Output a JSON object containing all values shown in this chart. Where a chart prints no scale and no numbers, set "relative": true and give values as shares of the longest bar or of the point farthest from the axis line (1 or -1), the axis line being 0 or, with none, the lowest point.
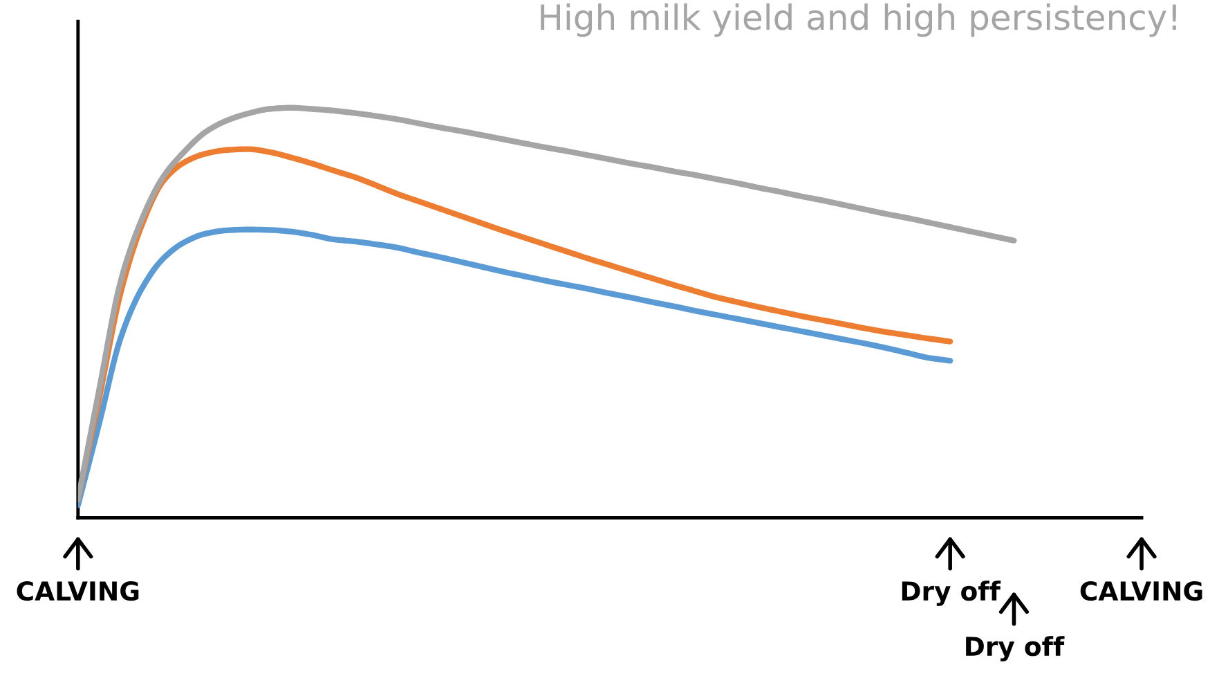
{
  "chart_data": {
    "type": "line",
    "title": "High milk yield and high persistency!",
    "relative": true,
    "legend": false,
    "marker": "none",
    "annotations": [
      "Dry off"
    ],
    "line_style": "solid",
    "categories": [
      "CALVING",
      null,
      null,
      null,
      null,
      null,
      null,
      null,
      null,
      null,
      null,
      null,
      null,
      null,
      null,
      null,
      null,
      null,
      null,
      null,
      null,
      null,
      null,
      null,
      null,
      null,
      null,
      null,
      null,
      null,
      null,
      null,
      null,
      null,
      null,
      null,
      null,
      null,
      null,
      null,
      null,
      "Dry off",
      null,
      null,
      null,
      null,
      null,
      null,
      null,
      null,
      "CALVING"
    ],
    "series": [
      {
        "color": "#5b9bd5",
        "values": [
          0.031,
          0.231,
          0.438,
          0.559,
          0.632,
          0.672,
          0.693,
          0.701,
          0.703,
          0.702,
          0.698,
          0.69,
          0.679,
          0.674,
          0.667,
          0.659,
          0.647,
          0.636,
          0.624,
          0.612,
          0.6,
          0.589,
          0.578,
          0.568,
          0.558,
          0.547,
          0.537,
          0.526,
          0.516,
          0.505,
          0.495,
          0.485,
          0.475,
          0.465,
          0.455,
          0.445,
          0.435,
          0.425,
          0.414,
          0.402,
          0.39,
          0.383,
          null,
          null,
          null,
          null,
          null,
          null,
          null,
          null,
          null
        ]
      },
      {
        "color": "#ed7d31",
        "values": [
          0.045,
          0.293,
          0.548,
          0.714,
          0.821,
          0.867,
          0.888,
          0.897,
          0.899,
          0.892,
          0.879,
          0.864,
          0.847,
          0.831,
          0.811,
          0.79,
          0.772,
          0.754,
          0.736,
          0.718,
          0.7,
          0.683,
          0.666,
          0.649,
          0.632,
          0.616,
          0.6,
          0.584,
          0.568,
          0.553,
          0.538,
          0.526,
          0.514,
          0.503,
          0.492,
          0.482,
          0.472,
          0.462,
          0.453,
          0.445,
          0.437,
          0.43,
          null,
          null,
          null,
          null,
          null,
          null,
          null,
          null,
          null
        ]
      },
      {
        "color": "#a5a5a5",
        "values": [
          0.045,
          0.314,
          0.576,
          0.728,
          0.831,
          0.893,
          0.941,
          0.969,
          0.986,
          0.997,
          1.0,
          0.997,
          0.993,
          0.987,
          0.98,
          0.972,
          0.962,
          0.952,
          0.943,
          0.933,
          0.923,
          0.913,
          0.903,
          0.894,
          0.884,
          0.874,
          0.864,
          0.855,
          0.845,
          0.836,
          0.826,
          0.816,
          0.805,
          0.795,
          0.784,
          0.774,
          0.763,
          0.752,
          0.741,
          0.731,
          0.72,
          0.709,
          0.698,
          0.687,
          0.676,
          null,
          null,
          null,
          null,
          null,
          null
        ]
      }
    ]
  }
}
